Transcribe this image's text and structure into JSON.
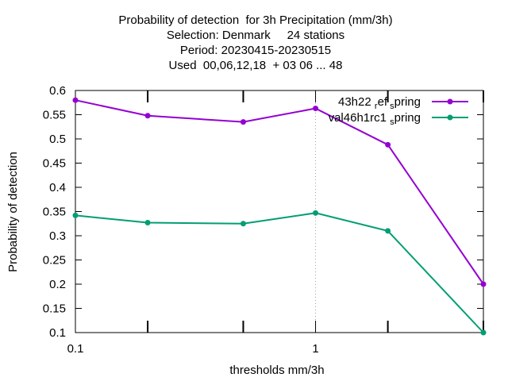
{
  "chart_data": {
    "type": "line",
    "title_lines": [
      "Probability of detection  for 3h Precipitation (mm/3h)",
      "Selection: Denmark     24 stations",
      "Period: 20230415-20230515",
      "Used  00,06,12,18  + 03 06 ... 48"
    ],
    "xlabel": "thresholds mm/3h",
    "ylabel": "Probability of detection",
    "x_scale": "log",
    "x": [
      0.1,
      0.2,
      0.5,
      1,
      2,
      5
    ],
    "x_tick_labels": [
      "0.1",
      "1"
    ],
    "ylim": [
      0.1,
      0.6
    ],
    "y_ticks": [
      "0.1",
      "0.15",
      "0.2",
      "0.25",
      "0.3",
      "0.35",
      "0.4",
      "0.45",
      "0.5",
      "0.55",
      "0.6"
    ],
    "legend_position": "top-right",
    "series": [
      {
        "legend_main": "43h22",
        "legend_sub": "r",
        "legend_mid": "ef",
        "legend_sub2": "s",
        "legend_tail": "pring",
        "color": "#9400d3",
        "values": [
          0.58,
          0.548,
          0.535,
          0.563,
          0.488,
          0.2
        ]
      },
      {
        "legend_main": "val46h1rc1",
        "legend_sub": "s",
        "legend_tail": "pring",
        "color": "#009e73",
        "values": [
          0.342,
          0.327,
          0.325,
          0.347,
          0.31,
          0.1
        ]
      }
    ]
  }
}
